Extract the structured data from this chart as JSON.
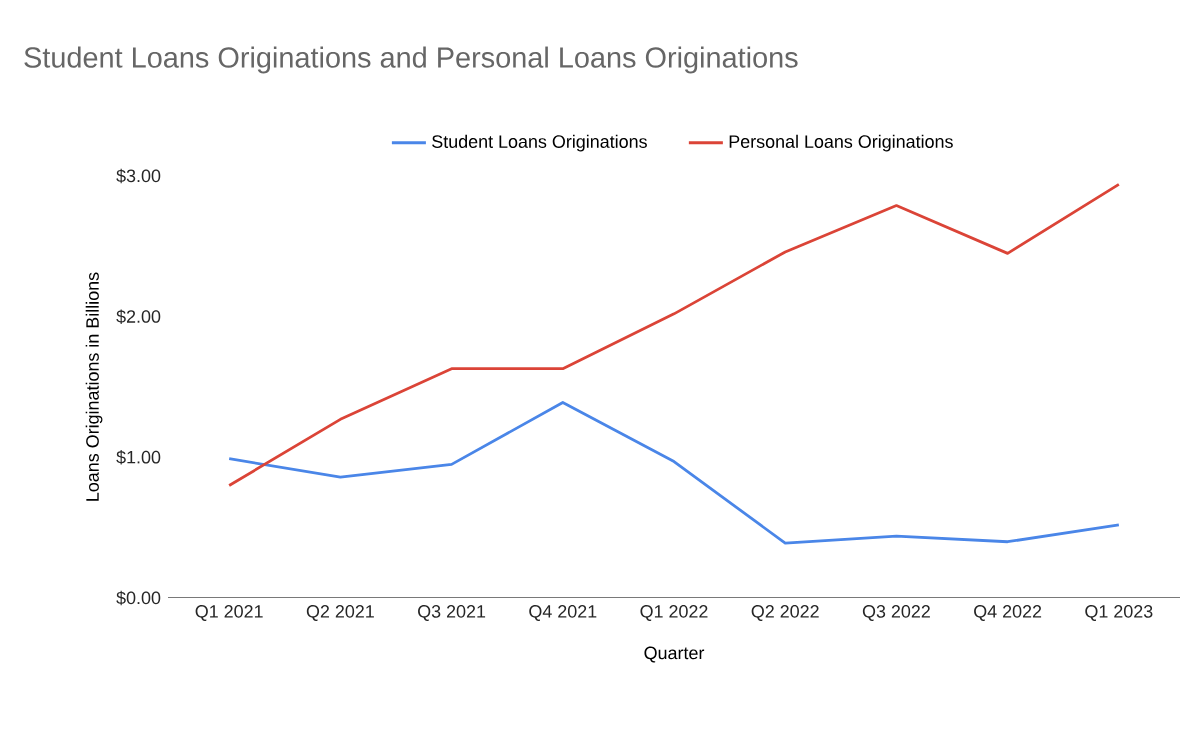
{
  "chart_data": {
    "type": "line",
    "title": "Student Loans Originations and Personal Loans Originations",
    "xlabel": "Quarter",
    "ylabel": "Loans Originations in Billions",
    "categories": [
      "Q1 2021",
      "Q2 2021",
      "Q3 2021",
      "Q4 2021",
      "Q1 2022",
      "Q2 2022",
      "Q3 2022",
      "Q4 2022",
      "Q1 2023"
    ],
    "series": [
      {
        "name": "Student Loans Originations",
        "color": "#4a86e8",
        "values": [
          0.99,
          0.86,
          0.95,
          1.39,
          0.97,
          0.39,
          0.44,
          0.4,
          0.52
        ]
      },
      {
        "name": "Personal Loans Originations",
        "color": "#db4437",
        "values": [
          0.8,
          1.27,
          1.63,
          1.63,
          2.02,
          2.46,
          2.79,
          2.45,
          2.94
        ]
      }
    ],
    "ylim": [
      0,
      3
    ],
    "yticks": [
      {
        "value": 0,
        "label": "$0.00"
      },
      {
        "value": 1,
        "label": "$1.00"
      },
      {
        "value": 2,
        "label": "$2.00"
      },
      {
        "value": 3,
        "label": "$3.00"
      }
    ],
    "legend": "top",
    "grid": false,
    "marker": "none",
    "line_style": "solid"
  }
}
